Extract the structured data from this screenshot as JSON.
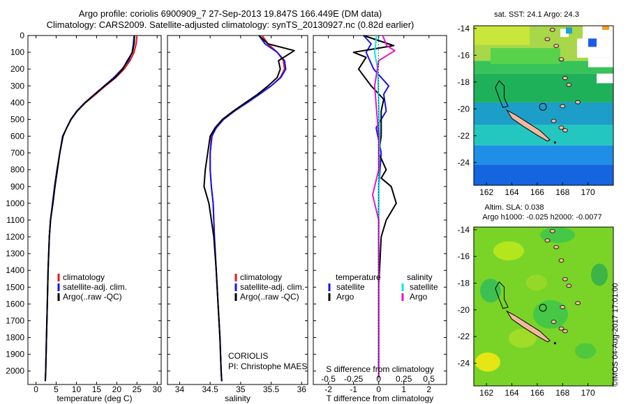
{
  "title": {
    "line1": "Argo profile: coriolis 6900909_7 27-Sep-2013 19.847S 166.449E (DM data)",
    "line2": "Climatology: CARS2009. Satellite-adjusted climatology: synTS_20130927.nc (0.82d earlier)"
  },
  "stamp": "©IMOS 04-Aug-2017 17:01:00",
  "colors": {
    "climatology": "#e8141e",
    "satellite": "#1414e6",
    "argo": "#000000",
    "sat_salinity": "#00e6e6",
    "argo_salinity": "#e614c8",
    "land": "#f2b9a0"
  },
  "chart_data": [
    {
      "type": "line",
      "id": "temperature",
      "xlabel": "temperature (deg C)",
      "ylabel": "",
      "xlim": [
        -2,
        31
      ],
      "ylim": [
        2080,
        0
      ],
      "xticks": [
        "0",
        "5",
        "10",
        "15",
        "20",
        "25",
        "30"
      ],
      "xtick_values": [
        0,
        5,
        10,
        15,
        20,
        25,
        30
      ],
      "yticks": [
        "0",
        "100",
        "200",
        "300",
        "400",
        "500",
        "600",
        "700",
        "800",
        "900",
        "1000",
        "1100",
        "1200",
        "1300",
        "1400",
        "1500",
        "1600",
        "1700",
        "1800",
        "1900",
        "2000"
      ],
      "ytick_values": [
        0,
        100,
        200,
        300,
        400,
        500,
        600,
        700,
        800,
        900,
        1000,
        1100,
        1200,
        1300,
        1400,
        1500,
        1600,
        1700,
        1800,
        1900,
        2000
      ],
      "legend": [
        "climatology",
        "satellite-adj. clim.",
        "Argo(..raw -QC)"
      ],
      "series": [
        {
          "name": "climatology",
          "color": "#e8141e",
          "x": [
            25,
            24.8,
            24.3,
            23.3,
            21.8,
            19.8,
            17.2,
            14.8,
            12.3,
            10.2,
            8.6,
            7.6,
            6.6,
            5.9,
            5.2,
            4.6,
            4.1,
            3.6,
            3.3,
            3.0,
            2.8,
            2.6,
            2.4,
            2.3
          ],
          "y": [
            0,
            50,
            100,
            150,
            200,
            250,
            300,
            350,
            400,
            450,
            500,
            550,
            600,
            700,
            800,
            900,
            1000,
            1100,
            1200,
            1400,
            1600,
            1800,
            2000,
            2060
          ]
        },
        {
          "name": "satellite-adj. clim.",
          "color": "#1414e6",
          "x": [
            24.3,
            24.1,
            23.8,
            22.9,
            21.3,
            19.3,
            16.9,
            14.5,
            12.1,
            10.1,
            8.6,
            7.6,
            6.6,
            5.9,
            5.2,
            4.6,
            4.1,
            3.6,
            3.3,
            3.0,
            2.8,
            2.6,
            2.4,
            2.3
          ],
          "y": [
            0,
            50,
            100,
            150,
            200,
            250,
            300,
            350,
            400,
            450,
            500,
            550,
            600,
            700,
            800,
            900,
            1000,
            1100,
            1200,
            1400,
            1600,
            1800,
            2000,
            2060
          ]
        },
        {
          "name": "Argo(..raw -QC)",
          "color": "#000000",
          "x": [
            24.4,
            24.3,
            23.9,
            22.6,
            21.5,
            19.6,
            17.0,
            14.6,
            12.2,
            10.2,
            8.7,
            7.6,
            6.7,
            5.9,
            5.3,
            4.7,
            4.2,
            3.6,
            3.3,
            3.0,
            2.8,
            2.6,
            2.4,
            2.3
          ],
          "y": [
            0,
            50,
            100,
            150,
            200,
            250,
            300,
            350,
            400,
            450,
            500,
            550,
            600,
            700,
            800,
            900,
            1000,
            1100,
            1200,
            1400,
            1600,
            1800,
            2000,
            2060
          ]
        }
      ]
    },
    {
      "type": "line",
      "id": "salinity",
      "xlabel": "salinity",
      "xlim": [
        33.8,
        36.1
      ],
      "ylim": [
        2080,
        0
      ],
      "xticks": [
        "34",
        "34.5",
        "35",
        "35.5",
        "36"
      ],
      "xtick_values": [
        34,
        34.5,
        35,
        35.5,
        36
      ],
      "legend": [
        "climatology",
        "satellite-adj. clim.",
        "Argo(..raw -QC)"
      ],
      "annotations": [
        "CORIOLIS",
        "PI: Christophe MAES"
      ],
      "series": [
        {
          "name": "climatology",
          "color": "#e8141e",
          "x": [
            35.35,
            35.45,
            35.6,
            35.7,
            35.72,
            35.65,
            35.5,
            35.3,
            35.1,
            34.9,
            34.72,
            34.6,
            34.52,
            34.5,
            34.5,
            34.52,
            34.55,
            34.57,
            34.6,
            34.63,
            34.66,
            34.68,
            34.69
          ],
          "y": [
            0,
            50,
            100,
            150,
            200,
            250,
            300,
            350,
            400,
            450,
            500,
            550,
            600,
            700,
            800,
            900,
            1000,
            1200,
            1400,
            1600,
            1800,
            2000,
            2060
          ]
        },
        {
          "name": "satellite-adj. clim.",
          "color": "#1414e6",
          "x": [
            35.3,
            35.4,
            35.6,
            35.72,
            35.74,
            35.66,
            35.5,
            35.31,
            35.11,
            34.9,
            34.72,
            34.6,
            34.53,
            34.5,
            34.5,
            34.52,
            34.55,
            34.57,
            34.6,
            34.63,
            34.66,
            34.68,
            34.69
          ],
          "y": [
            0,
            50,
            100,
            150,
            200,
            250,
            300,
            350,
            400,
            450,
            500,
            550,
            600,
            700,
            800,
            900,
            1000,
            1200,
            1400,
            1600,
            1800,
            2000,
            2060
          ]
        },
        {
          "name": "Argo(..raw -QC)",
          "color": "#000000",
          "x": [
            35.3,
            35.45,
            35.88,
            35.62,
            35.65,
            35.6,
            35.45,
            35.28,
            35.08,
            34.88,
            34.7,
            34.58,
            34.5,
            34.46,
            34.42,
            34.4,
            34.48,
            34.56,
            34.6,
            34.63,
            34.66,
            34.68,
            34.69
          ],
          "y": [
            0,
            50,
            90,
            150,
            200,
            250,
            300,
            350,
            400,
            450,
            500,
            550,
            600,
            700,
            800,
            900,
            1000,
            1200,
            1400,
            1600,
            1800,
            2000,
            2060
          ]
        }
      ]
    },
    {
      "type": "line",
      "id": "difference",
      "xlabel": "T difference from climatology",
      "xlabel_top": "S difference from climatology",
      "xlim": [
        -2.6,
        2.7
      ],
      "ylim": [
        2080,
        0
      ],
      "xticks": [
        "-2",
        "-1",
        "0",
        "1",
        "2"
      ],
      "xtick_values": [
        -2,
        -1,
        0,
        1,
        2
      ],
      "xticks_top": [
        "-0.5",
        "-0.25",
        "0",
        "0.25",
        "0.5"
      ],
      "xtick_top_values": [
        -0.5,
        -0.25,
        0,
        0.25,
        0.5
      ],
      "legend_titles": [
        "temperature",
        "salinity"
      ],
      "legend": [
        "satellite",
        "Argo",
        "satellite",
        "Argo"
      ],
      "series": [
        {
          "name": "temperature satellite",
          "color": "#1414e6",
          "x": [
            -0.6,
            -0.3,
            -0.5,
            -0.2,
            0.4,
            0.2,
            0.3,
            -0.1,
            0.1,
            0.0,
            0.0,
            0.0,
            0.0,
            0.0
          ],
          "y": [
            0,
            50,
            100,
            200,
            300,
            350,
            450,
            550,
            700,
            900,
            1200,
            1500,
            1800,
            2040
          ]
        },
        {
          "name": "temperature Argo",
          "color": "#000000",
          "x": [
            -0.6,
            0.6,
            -1.0,
            -0.5,
            -0.8,
            -0.3,
            0.2,
            0.1,
            0.1,
            0.0,
            0.3,
            0.1,
            0.5,
            0.7,
            0.3,
            0.1,
            0.0,
            0.0,
            0.0
          ],
          "y": [
            0,
            60,
            100,
            130,
            200,
            300,
            380,
            450,
            600,
            700,
            800,
            850,
            900,
            1000,
            1100,
            1200,
            1500,
            1800,
            2040
          ]
        },
        {
          "name": "salinity satellite",
          "color": "#00e6e6",
          "x": [
            -0.02,
            -0.04,
            -0.01,
            0.0,
            0.01,
            0.0,
            0.0,
            0.0,
            0.0
          ],
          "y": [
            0,
            100,
            200,
            400,
            600,
            900,
            1200,
            1600,
            2040
          ]
        },
        {
          "name": "salinity Argo",
          "color": "#e614c8",
          "x": [
            0.04,
            0.08,
            0.16,
            0.0,
            -0.04,
            0.0,
            0.0,
            -0.06,
            0.0,
            0.0,
            0.0
          ],
          "y": [
            0,
            60,
            90,
            150,
            300,
            600,
            800,
            950,
            1100,
            1500,
            2040
          ]
        }
      ]
    },
    {
      "type": "heatmap",
      "id": "sst_map",
      "title": "sat. SST: 24.1  Argo: 24.3",
      "xticks": [
        "162",
        "164",
        "166",
        "168",
        "170"
      ],
      "xtick_values": [
        162,
        164,
        166,
        168,
        170
      ],
      "yticks": [
        "-14",
        "-16",
        "-18",
        "-20",
        "-22",
        "-24"
      ],
      "ytick_values": [
        -14,
        -16,
        -18,
        -20,
        -22,
        -24
      ],
      "xlim": [
        161,
        172
      ],
      "ylim": [
        -25.7,
        -13.8
      ],
      "profile_lon": 166.449,
      "profile_lat": -19.847
    },
    {
      "type": "heatmap",
      "id": "sla_map",
      "title": "Altim. SLA: 0.038",
      "subtitle": "Argo h1000: -0.025 h2000: -0.0077",
      "xticks": [
        "162",
        "164",
        "166",
        "168",
        "170"
      ],
      "xtick_values": [
        162,
        164,
        166,
        168,
        170
      ],
      "yticks": [
        "-14",
        "-16",
        "-18",
        "-20",
        "-22",
        "-24"
      ],
      "ytick_values": [
        -14,
        -16,
        -18,
        -20,
        -22,
        -24
      ],
      "xlim": [
        161,
        172
      ],
      "ylim": [
        -25.7,
        -13.8
      ],
      "profile_lon": 166.449,
      "profile_lat": -19.847
    }
  ]
}
